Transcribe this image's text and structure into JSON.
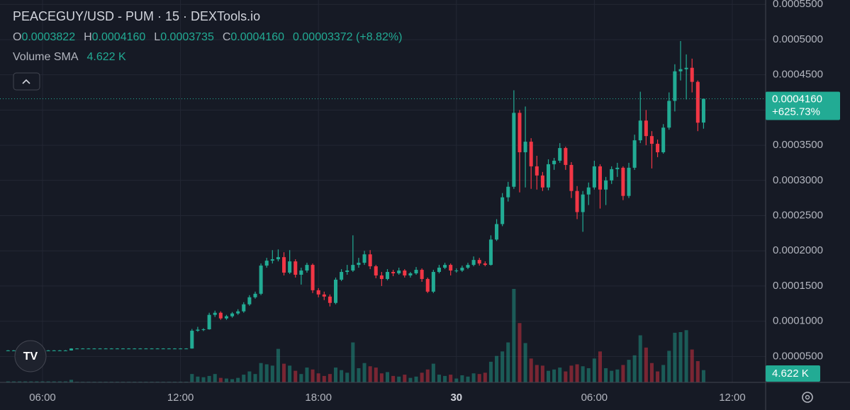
{
  "header": {
    "title": "PEACEGUY/USD - PUM · 15 · DEXTools.io",
    "ohlc": [
      {
        "key": "O",
        "value": "0.0003822"
      },
      {
        "key": "H",
        "value": "0.0004160"
      },
      {
        "key": "L",
        "value": "0.0003735"
      },
      {
        "key": "C",
        "value": "0.0004160"
      }
    ],
    "change": "0.00003372 (+8.82%)",
    "volume_label": "Volume SMA",
    "volume_value": "4.622 K"
  },
  "chart_data": {
    "type": "candlestick",
    "up_color": "#22ab94",
    "down_color": "#f23645",
    "grid": true,
    "last_price_label": "0.0004160",
    "last_change_label": "+625.73%",
    "volume_tag": "4.622 K",
    "xlim": [
      -1.4,
      131.8
    ],
    "xticks": [
      {
        "value": 6,
        "label": "06:00"
      },
      {
        "value": 30,
        "label": "12:00"
      },
      {
        "value": 54,
        "label": "18:00"
      },
      {
        "value": 78,
        "label": "30"
      },
      {
        "value": 102,
        "label": "06:00"
      },
      {
        "value": 126,
        "label": "12:00"
      }
    ],
    "ylim": [
      1.31e-05,
      0.0005563
    ],
    "yticks": [
      {
        "value": 5e-05,
        "label": "0.0000500"
      },
      {
        "value": 0.0001,
        "label": "0.0001000"
      },
      {
        "value": 0.00015,
        "label": "0.0001500"
      },
      {
        "value": 0.0002,
        "label": "0.0002000"
      },
      {
        "value": 0.00025,
        "label": "0.0002500"
      },
      {
        "value": 0.0003,
        "label": "0.0003000"
      },
      {
        "value": 0.00035,
        "label": "0.0003500"
      },
      {
        "value": 0.0004,
        "label": "0.0004000"
      },
      {
        "value": 0.00045,
        "label": "0.0004500"
      },
      {
        "value": 0.0005,
        "label": "0.0005000"
      },
      {
        "value": 0.00055,
        "label": "0.0005500"
      }
    ],
    "open": [
      5.85e-05,
      5.85e-05,
      5.85e-05,
      5.85e-05,
      5.85e-05,
      5.85e-05,
      5.85e-05,
      5.85e-05,
      5.85e-05,
      5.85e-05,
      5.85e-05,
      5.85e-05,
      6.12e-05,
      6.12e-05,
      6.12e-05,
      6.12e-05,
      6.12e-05,
      6.12e-05,
      6.12e-05,
      6.12e-05,
      6.12e-05,
      6.12e-05,
      6.12e-05,
      6.12e-05,
      6.12e-05,
      6.12e-05,
      6.12e-05,
      6.12e-05,
      6.12e-05,
      6.12e-05,
      6.12e-05,
      6.12e-05,
      6.12e-05,
      8.65e-05,
      8.8e-05,
      8.85e-05,
      0.000109,
      0.000112,
      0.000104,
      0.000107,
      0.000111,
      0.000114,
      0.000124,
      0.000134,
      0.000139,
      0.000179,
      0.000186,
      0.000188,
      0.000191,
      0.000169,
      0.000185,
      0.000166,
      0.000172,
      0.00018,
      0.000144,
      0.000138,
      0.000135,
      0.000126,
      0.000159,
      0.00017,
      0.000172,
      0.00018,
      0.000183,
      0.000195,
      0.000178,
      0.000165,
      0.00016,
      0.00017,
      0.000168,
      0.000172,
      0.000165,
      0.000168,
      0.000173,
      0.00016,
      0.000142,
      0.00017,
      0.000176,
      0.00018,
      0.000172,
      0.000172,
      0.000176,
      0.00018,
      0.000187,
      0.000182,
      0.00018,
      0.000216,
      0.000238,
      0.000276,
      0.000291,
      0.000396,
      0.00034,
      0.000355,
      0.00032,
      0.000307,
      0.00029,
      0.000323,
      0.000328,
      0.000346,
      0.000322,
      0.000285,
      0.000255,
      0.00028,
      0.00029,
      0.00032,
      0.000287,
      0.0003,
      0.000316,
      0.000318,
      0.000278,
      0.000318,
      0.000357,
      0.000385,
      0.000363,
      0.000352,
      0.00034,
      0.000375,
      0.000413,
      0.000455,
      0.000458,
      0.00046,
      0.00044,
      0.0003822
    ],
    "high": [
      5.9e-05,
      5.9e-05,
      5.9e-05,
      5.9e-05,
      5.9e-05,
      5.9e-05,
      5.9e-05,
      5.9e-05,
      5.9e-05,
      5.9e-05,
      5.9e-05,
      6.15e-05,
      6.16e-05,
      6.16e-05,
      6.16e-05,
      6.16e-05,
      6.16e-05,
      6.16e-05,
      6.16e-05,
      6.16e-05,
      6.16e-05,
      6.16e-05,
      6.16e-05,
      6.16e-05,
      6.16e-05,
      6.16e-05,
      6.16e-05,
      6.16e-05,
      6.16e-05,
      6.16e-05,
      6.16e-05,
      6.16e-05,
      8.9e-05,
      9.2e-05,
      9e-05,
      0.000112,
      0.000115,
      0.000114,
      0.000109,
      0.000113,
      0.000117,
      0.000127,
      0.000137,
      0.000142,
      0.000182,
      0.00019,
      0.000201,
      0.000202,
      0.000198,
      0.000201,
      0.000188,
      0.000176,
      0.000183,
      0.000182,
      0.000147,
      0.000142,
      0.000138,
      0.000162,
      0.000174,
      0.00018,
      0.000222,
      0.00019,
      0.0002,
      0.000201,
      0.00018,
      0.00017,
      0.000174,
      0.000173,
      0.000176,
      0.000174,
      0.00017,
      0.000177,
      0.000175,
      0.000162,
      0.000173,
      0.00018,
      0.000183,
      0.000182,
      0.000175,
      0.000179,
      0.000183,
      0.000192,
      0.00019,
      0.000185,
      0.000222,
      0.000245,
      0.000282,
      0.000298,
      0.000428,
      0.0004,
      0.000405,
      0.00036,
      0.000335,
      0.000312,
      0.00033,
      0.000332,
      0.000353,
      0.000348,
      0.000326,
      0.000292,
      0.000285,
      0.000297,
      0.000328,
      0.000323,
      0.000305,
      0.00032,
      0.000325,
      0.00032,
      0.000325,
      0.000365,
      0.000426,
      0.0004,
      0.00037,
      0.000358,
      0.00038,
      0.000425,
      0.000465,
      0.000498,
      0.000479,
      0.000473,
      0.000442,
      0.000416
    ],
    "low": [
      5.8e-05,
      5.8e-05,
      5.8e-05,
      5.8e-05,
      5.8e-05,
      5.8e-05,
      5.8e-05,
      5.8e-05,
      5.8e-05,
      5.8e-05,
      5.8e-05,
      5.83e-05,
      6.08e-05,
      6.08e-05,
      6.08e-05,
      6.08e-05,
      6.08e-05,
      6.08e-05,
      6.08e-05,
      6.08e-05,
      6.08e-05,
      6.08e-05,
      6.08e-05,
      6.08e-05,
      6.08e-05,
      6.08e-05,
      6.08e-05,
      6.08e-05,
      6.08e-05,
      6.08e-05,
      6.08e-05,
      6.08e-05,
      6.1e-05,
      8.5e-05,
      8.6e-05,
      8.8e-05,
      0.000106,
      0.000102,
      0.000102,
      0.000105,
      0.000109,
      0.000112,
      0.000122,
      0.000132,
      0.000137,
      0.000176,
      0.000182,
      0.000185,
      0.000165,
      0.000167,
      0.000162,
      0.000152,
      0.000169,
      0.00014,
      0.000134,
      0.00013,
      0.000121,
      0.000124,
      0.000157,
      0.000166,
      0.00017,
      0.000176,
      0.00018,
      0.000174,
      0.000161,
      0.00015,
      0.000158,
      0.000164,
      0.000166,
      0.000162,
      0.000162,
      0.000166,
      0.000156,
      0.00014,
      0.00014,
      0.000168,
      0.000174,
      0.000165,
      0.000169,
      0.00017,
      0.000174,
      0.000178,
      0.000179,
      0.000178,
      0.000179,
      0.000214,
      0.000235,
      0.00027,
      0.000288,
      0.000283,
      0.00029,
      0.000288,
      0.000287,
      0.000285,
      0.000286,
      0.000315,
      0.000325,
      0.000315,
      0.000275,
      0.000245,
      0.000227,
      0.000265,
      0.000287,
      0.00026,
      0.000265,
      0.000295,
      0.000305,
      0.000272,
      0.000275,
      0.000315,
      0.000353,
      0.00035,
      0.000317,
      0.000333,
      0.000338,
      0.000372,
      0.000398,
      0.000442,
      0.000415,
      0.000425,
      0.00037,
      0.0003735
    ],
    "close": [
      5.85e-05,
      5.85e-05,
      5.85e-05,
      5.85e-05,
      5.85e-05,
      5.85e-05,
      5.85e-05,
      5.85e-05,
      5.85e-05,
      5.85e-05,
      5.85e-05,
      6.12e-05,
      6.12e-05,
      6.12e-05,
      6.12e-05,
      6.12e-05,
      6.12e-05,
      6.12e-05,
      6.12e-05,
      6.12e-05,
      6.12e-05,
      6.12e-05,
      6.12e-05,
      6.12e-05,
      6.12e-05,
      6.12e-05,
      6.12e-05,
      6.12e-05,
      6.12e-05,
      6.12e-05,
      6.12e-05,
      6.12e-05,
      8.65e-05,
      8.8e-05,
      8.85e-05,
      0.000109,
      0.000112,
      0.000104,
      0.000107,
      0.000111,
      0.000114,
      0.000124,
      0.000134,
      0.000139,
      0.000179,
      0.000186,
      0.000188,
      0.000191,
      0.000169,
      0.000185,
      0.000166,
      0.000172,
      0.00018,
      0.000144,
      0.000138,
      0.000135,
      0.000126,
      0.000159,
      0.00017,
      0.000172,
      0.00018,
      0.000183,
      0.000195,
      0.000178,
      0.000165,
      0.00016,
      0.00017,
      0.000168,
      0.000172,
      0.000165,
      0.000168,
      0.000173,
      0.00016,
      0.000142,
      0.00017,
      0.000176,
      0.00018,
      0.000172,
      0.000172,
      0.000176,
      0.00018,
      0.000187,
      0.000182,
      0.00018,
      0.000216,
      0.000238,
      0.000276,
      0.000291,
      0.000396,
      0.00034,
      0.000355,
      0.00032,
      0.000307,
      0.00029,
      0.000323,
      0.000328,
      0.000346,
      0.000322,
      0.000285,
      0.000255,
      0.00028,
      0.00029,
      0.00032,
      0.000287,
      0.0003,
      0.000316,
      0.000318,
      0.000278,
      0.000318,
      0.000357,
      0.000385,
      0.000363,
      0.000352,
      0.00034,
      0.000375,
      0.000413,
      0.000455,
      0.000458,
      0.00046,
      0.00044,
      0.000382,
      0.000416
    ],
    "volume": [
      150,
      150,
      150,
      150,
      150,
      150,
      150,
      150,
      150,
      150,
      150,
      400,
      100,
      100,
      100,
      100,
      100,
      100,
      100,
      100,
      100,
      100,
      100,
      100,
      100,
      100,
      100,
      100,
      100,
      100,
      100,
      100,
      1300,
      900,
      800,
      1000,
      1300,
      700,
      600,
      500,
      700,
      1200,
      1700,
      1300,
      3000,
      2800,
      2600,
      5200,
      2900,
      2600,
      1800,
      1300,
      2300,
      2000,
      1400,
      1000,
      1300,
      2300,
      1900,
      1500,
      6200,
      2200,
      3000,
      2500,
      2300,
      1400,
      1600,
      1000,
      900,
      1200,
      700,
      900,
      1500,
      2000,
      2900,
      1200,
      1000,
      1200,
      600,
      1100,
      900,
      1400,
      1300,
      1500,
      3200,
      4100,
      4800,
      6200,
      14500,
      9200,
      6100,
      3700,
      2700,
      2600,
      1800,
      2000,
      2300,
      1700,
      2600,
      2800,
      2500,
      2200,
      3700,
      4800,
      2200,
      1800,
      2000,
      2700,
      3500,
      4200,
      7300,
      5400,
      3000,
      1700,
      2700,
      4900,
      7700,
      7800,
      8100,
      5100,
      3300,
      1900
    ]
  }
}
